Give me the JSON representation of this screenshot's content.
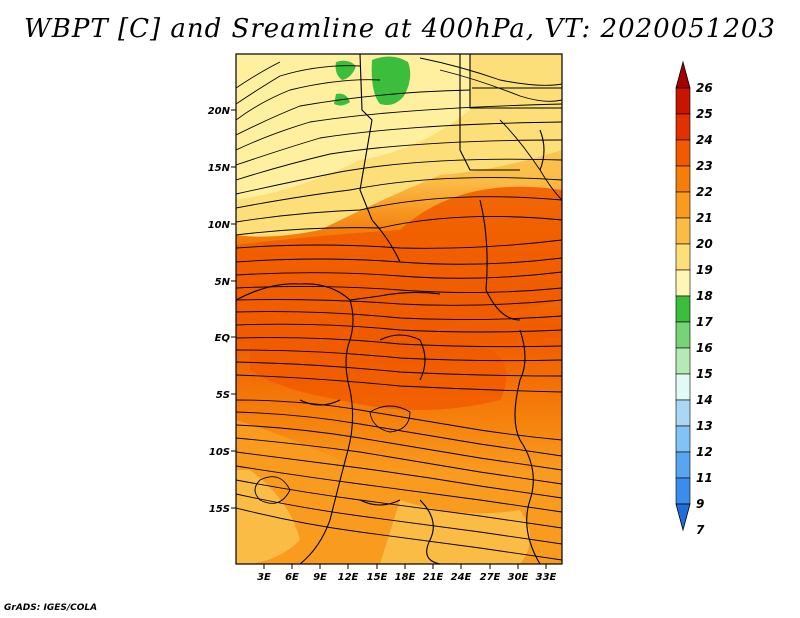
{
  "title": "WBPT [C] and Sreamline at 400hPa, VT: 2020051203",
  "footer": "GrADS: IGES/COLA",
  "map": {
    "lat_labels": [
      "20N",
      "15N",
      "10N",
      "5N",
      "EQ",
      "5S",
      "10S",
      "15S"
    ],
    "lon_labels": [
      "3E",
      "6E",
      "9E",
      "12E",
      "15E",
      "18E",
      "21E",
      "24E",
      "27E",
      "30E",
      "33E"
    ]
  },
  "colorbar": {
    "labels": [
      "26",
      "25",
      "24",
      "23",
      "22",
      "21",
      "20",
      "19",
      "18",
      "17",
      "16",
      "15",
      "14",
      "13",
      "12",
      "11",
      "9",
      "7"
    ],
    "colors": [
      "#a50000",
      "#c81400",
      "#e03200",
      "#f05a00",
      "#f57d0a",
      "#f99b1e",
      "#fbbc46",
      "#fddf7a",
      "#fff5b4",
      "#3cbe3c",
      "#78d278",
      "#b4ebb4",
      "#e1faf5",
      "#aad7f5",
      "#82c3f5",
      "#5aa5f0",
      "#3c8ceb",
      "#1e6edc"
    ]
  }
}
